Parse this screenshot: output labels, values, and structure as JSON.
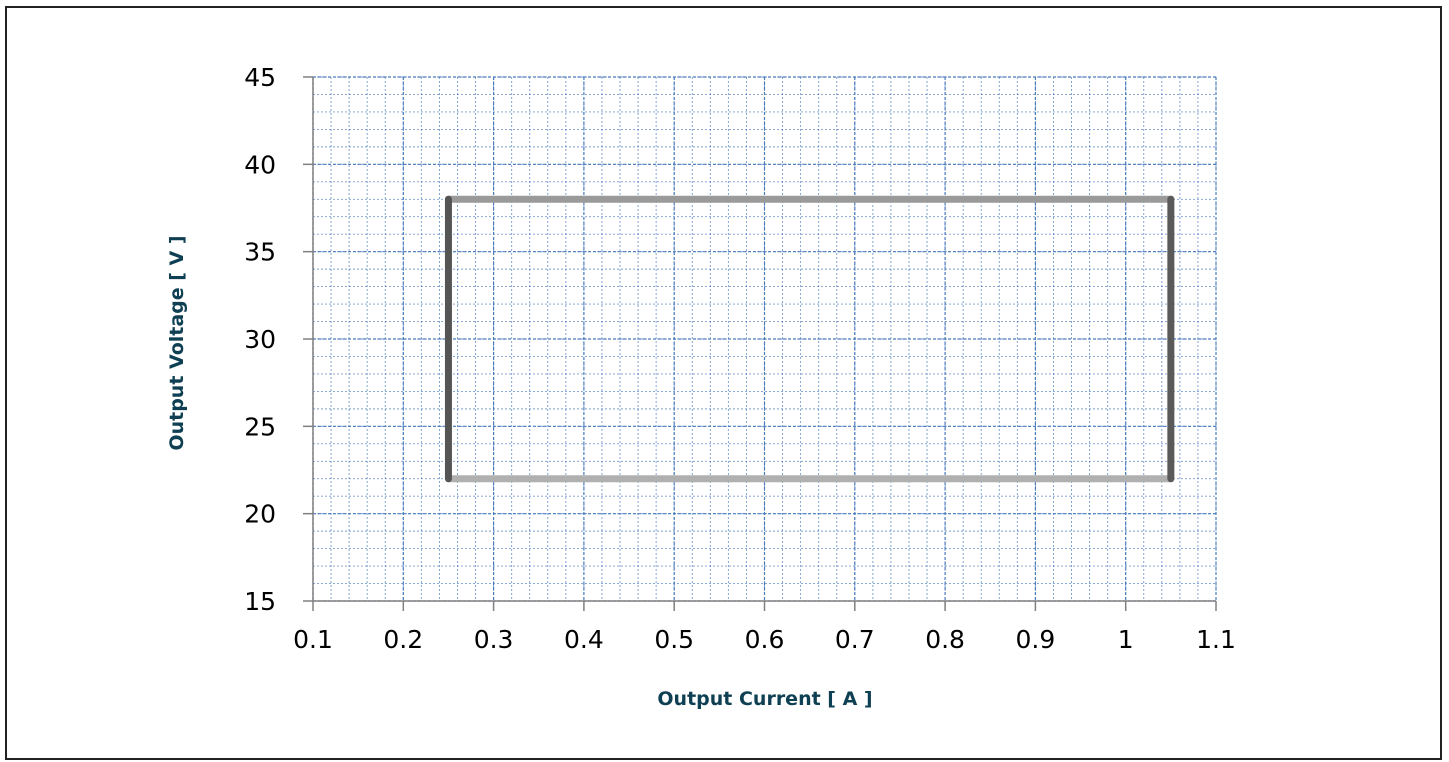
{
  "chart_data": {
    "type": "line",
    "title": "",
    "xlabel": "Output Current [ A ]",
    "ylabel": "Output Voltage [ V ]",
    "xlim": [
      0.1,
      1.1
    ],
    "ylim": [
      15,
      45
    ],
    "x_major_step": 0.1,
    "y_major_step": 5,
    "x_ticks": [
      "0.1",
      "0.2",
      "0.3",
      "0.4",
      "0.5",
      "0.6",
      "0.7",
      "0.8",
      "0.9",
      "1",
      "1.1"
    ],
    "y_ticks": [
      "15",
      "20",
      "25",
      "30",
      "35",
      "40",
      "45"
    ],
    "grid": "on (major and dotted minor)",
    "legend": "none",
    "series": [
      {
        "x": [
          0.25,
          1.05
        ],
        "y": [
          38,
          38
        ],
        "color": "#9a9a9a"
      },
      {
        "x": [
          0.25,
          1.05
        ],
        "y": [
          22,
          22
        ],
        "color": "#b0b0b0"
      },
      {
        "x": [
          0.25,
          0.25
        ],
        "y": [
          22,
          38
        ],
        "color": "#555555"
      },
      {
        "x": [
          1.05,
          1.05
        ],
        "y": [
          22,
          38
        ],
        "color": "#5a5a5a"
      }
    ],
    "colors": {
      "axis_title": "#0e3f52",
      "grid": "#4a7bbd",
      "axis": "#808080"
    }
  }
}
